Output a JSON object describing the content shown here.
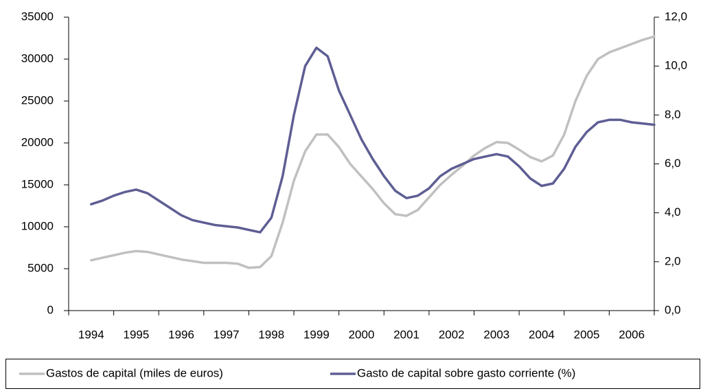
{
  "chart_data": {
    "type": "line",
    "xlim": [
      1993.5,
      2006.5
    ],
    "xticks": [
      1994,
      1995,
      1996,
      1997,
      1998,
      1999,
      2000,
      2001,
      2002,
      2003,
      2004,
      2005,
      2006
    ],
    "ylim": [
      0,
      35000
    ],
    "yticks": [
      0,
      5000,
      10000,
      15000,
      20000,
      25000,
      30000,
      35000
    ],
    "y2lim": [
      0,
      12
    ],
    "y2ticks": [
      {
        "value": 0,
        "label": "0,0"
      },
      {
        "value": 2,
        "label": "2,0"
      },
      {
        "value": 4,
        "label": "4,0"
      },
      {
        "value": 6,
        "label": "6,0"
      },
      {
        "value": 8,
        "label": "8,0"
      },
      {
        "value": 10,
        "label": "10,0"
      },
      {
        "value": 12,
        "label": "12,0"
      }
    ],
    "x": [
      1994,
      1994.25,
      1994.5,
      1994.75,
      1995,
      1995.25,
      1995.5,
      1995.75,
      1996,
      1996.25,
      1996.5,
      1996.75,
      1997,
      1997.25,
      1997.5,
      1997.75,
      1998,
      1998.25,
      1998.5,
      1998.75,
      1999,
      1999.25,
      1999.5,
      1999.75,
      2000,
      2000.25,
      2000.5,
      2000.75,
      2001,
      2001.25,
      2001.5,
      2001.75,
      2002,
      2002.25,
      2002.5,
      2002.75,
      2003,
      2003.25,
      2003.5,
      2003.75,
      2004,
      2004.25,
      2004.5,
      2004.75,
      2005,
      2005.25,
      2005.5,
      2005.75,
      2006,
      2006.25,
      2006.5
    ],
    "series": [
      {
        "name": "Gastos de capital (miles de euros)",
        "color": "#c0c0c0",
        "values": [
          6000,
          6300,
          6600,
          6900,
          7100,
          7000,
          6700,
          6400,
          6100,
          5900,
          5700,
          5700,
          5700,
          5600,
          5100,
          5200,
          6500,
          10500,
          15500,
          19000,
          21000,
          21000,
          19500,
          17500,
          16000,
          14500,
          12800,
          11500,
          11300,
          12000,
          13500,
          15000,
          16200,
          17300,
          18500,
          19400,
          20100,
          20000,
          19200,
          18300,
          17800,
          18500,
          21000,
          25000,
          28000,
          30000,
          30800,
          31300,
          31800,
          32300,
          32700
        ]
      },
      {
        "name": "Gasto de capital sobre gasto corriente (%)",
        "color": "#5e5e94",
        "axis": "y2",
        "values": [
          4.35,
          4.5,
          4.7,
          4.85,
          4.95,
          4.8,
          4.5,
          4.2,
          3.9,
          3.7,
          3.6,
          3.5,
          3.45,
          3.4,
          3.3,
          3.2,
          3.8,
          5.5,
          8.0,
          10.0,
          10.75,
          10.4,
          9.0,
          8.0,
          7.0,
          6.2,
          5.5,
          4.9,
          4.6,
          4.7,
          5.0,
          5.5,
          5.8,
          6.0,
          6.2,
          6.3,
          6.4,
          6.3,
          5.9,
          5.4,
          5.1,
          5.2,
          5.8,
          6.7,
          7.3,
          7.7,
          7.8,
          7.8,
          7.7,
          7.65,
          7.6
        ]
      }
    ]
  }
}
